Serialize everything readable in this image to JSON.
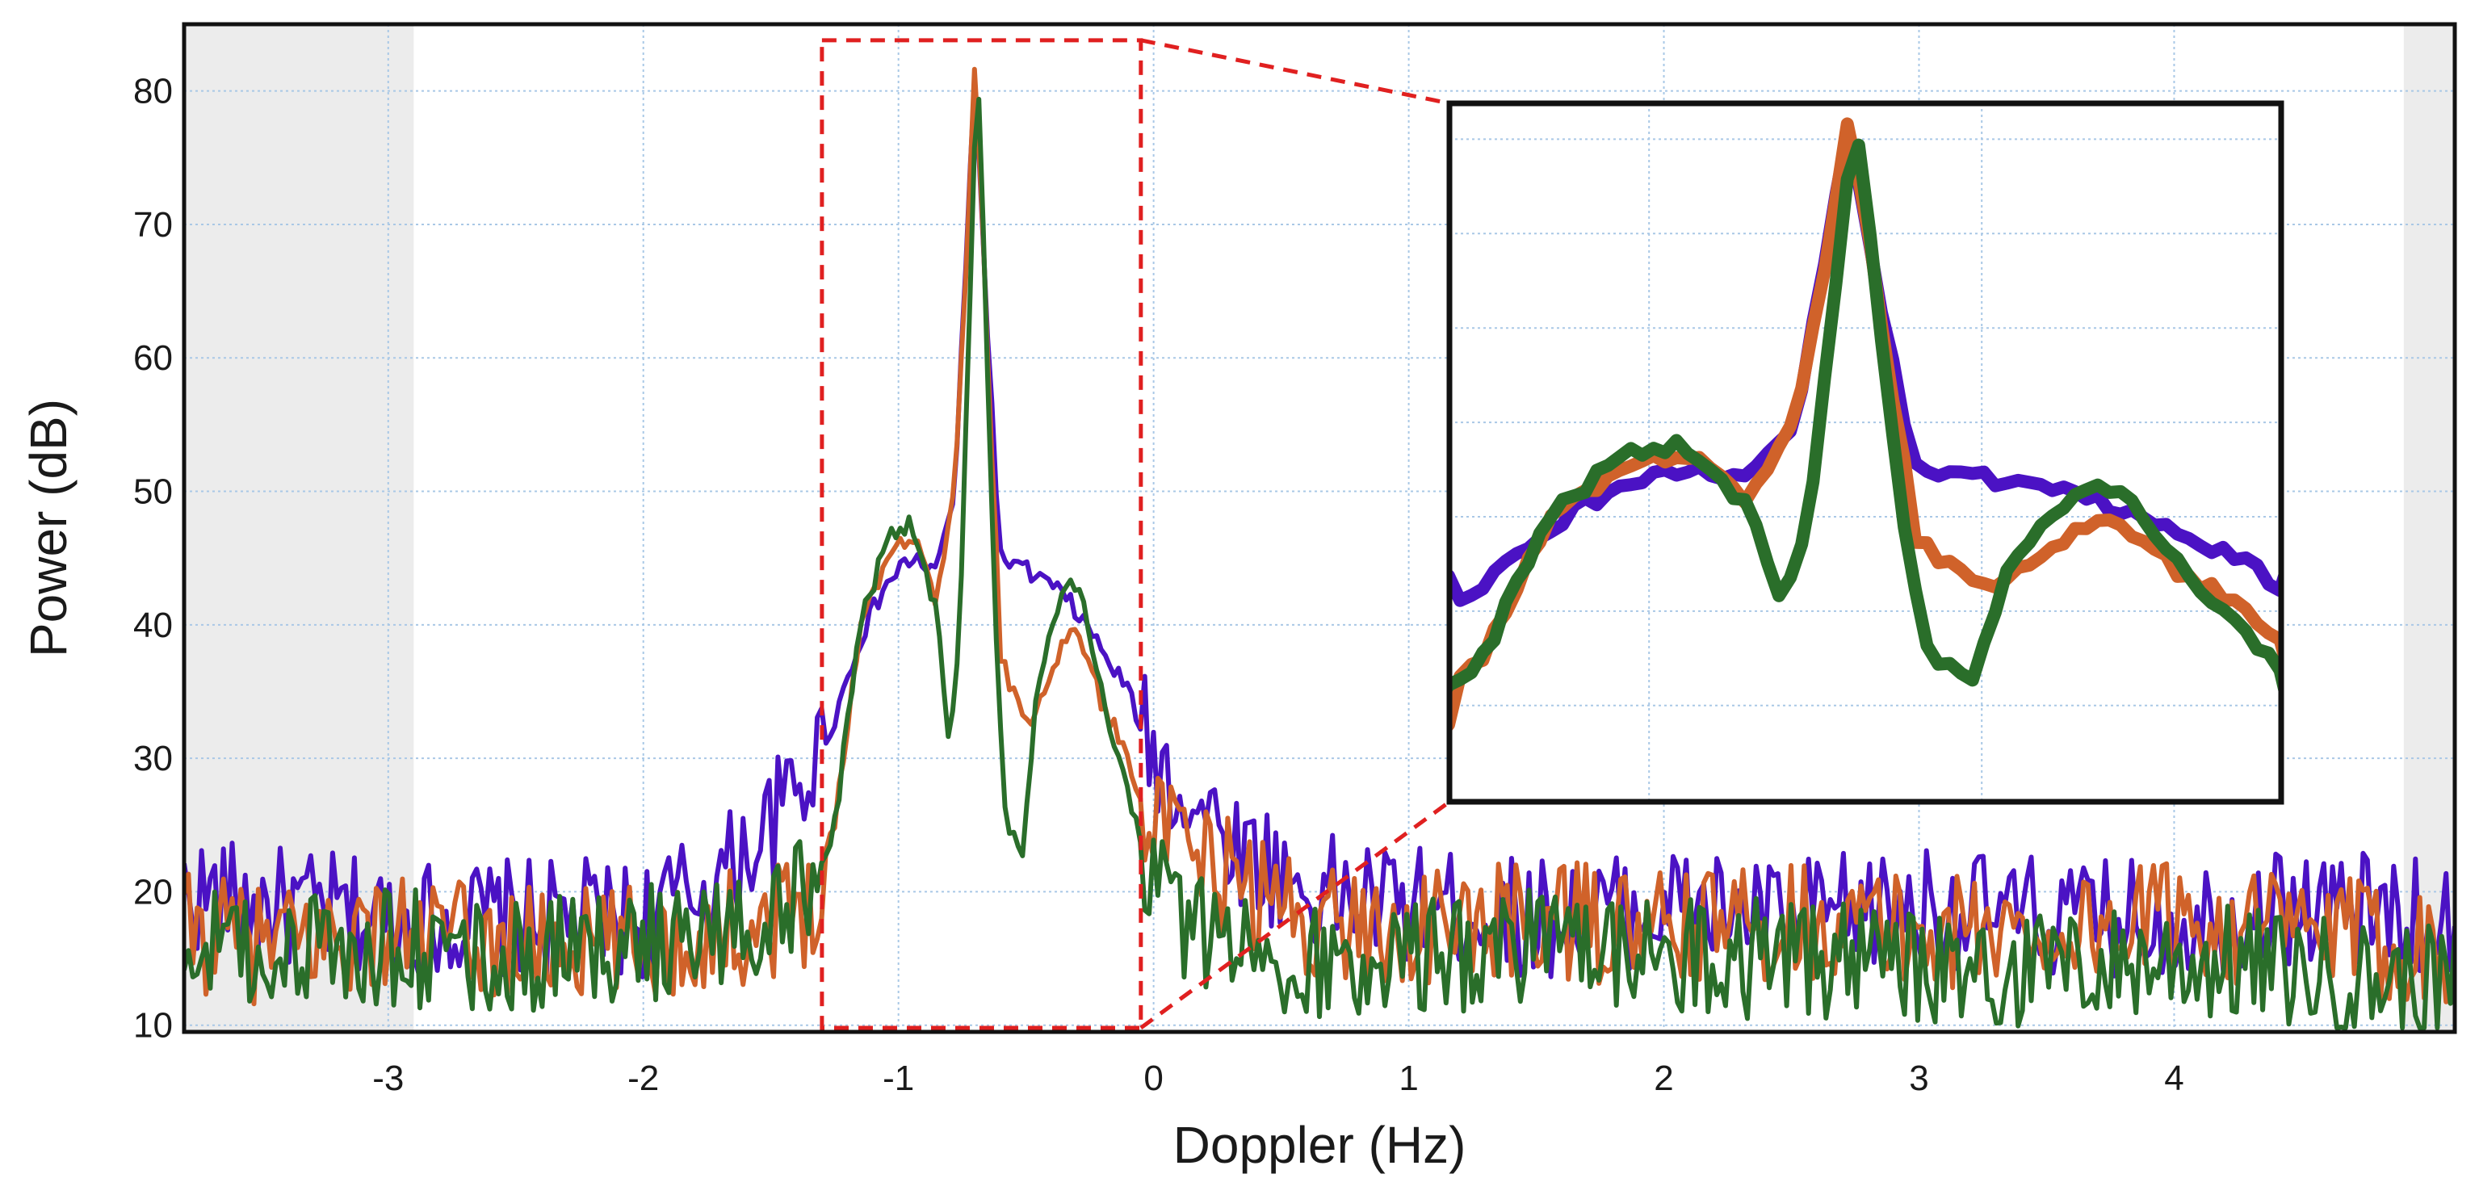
{
  "chart_data": {
    "type": "line",
    "title": "",
    "xlabel": "Doppler (Hz)",
    "ylabel": "Power (dB)",
    "xlim": [
      -3.8,
      5.1
    ],
    "ylim": [
      9.5,
      85
    ],
    "x_ticks": [
      -3,
      -2,
      -1,
      0,
      1,
      2,
      3,
      4
    ],
    "x_tick_labels": [
      "-3",
      "-2",
      "-1",
      "0",
      "1",
      "2",
      "3",
      "4"
    ],
    "y_ticks": [
      10,
      20,
      30,
      40,
      50,
      60,
      70,
      80
    ],
    "y_tick_labels": [
      "10",
      "20",
      "30",
      "40",
      "50",
      "60",
      "70",
      "80"
    ],
    "grid": true,
    "legend": "none",
    "shaded_regions": [
      [
        -3.8,
        -2.9
      ],
      [
        4.9,
        5.1
      ]
    ],
    "highlight_box": {
      "x": [
        -1.3,
        -0.05
      ],
      "y": [
        9.8,
        83.8
      ],
      "color": "#e02020",
      "style": "dashed"
    },
    "colors": {
      "purple": "#4b12c4",
      "orange": "#d0622a",
      "green": "#2a6e2a",
      "grid": "#a9c8e6",
      "shade": "#ececec"
    },
    "series": [
      {
        "color": "#4b12c4",
        "x": [
          -3.8,
          -3.5,
          -3.0,
          -2.5,
          -2.0,
          -1.7,
          -1.5,
          -1.35,
          -1.25,
          -1.15,
          -1.05,
          -0.95,
          -0.85,
          -0.78,
          -0.74,
          -0.7,
          -0.66,
          -0.6,
          -0.5,
          -0.4,
          -0.3,
          -0.2,
          -0.1,
          0.0,
          0.1,
          0.3,
          0.6,
          1.0,
          1.5,
          2.0,
          2.5,
          3.0,
          3.5,
          4.0,
          4.5,
          5.0
        ],
        "y": [
          20,
          19,
          18,
          18,
          18,
          21,
          25,
          29,
          33,
          39,
          43,
          45,
          44,
          50,
          65,
          82,
          65,
          45,
          44,
          43,
          41,
          38,
          35,
          30,
          28,
          24,
          20,
          19,
          18,
          19,
          18,
          19,
          18,
          18,
          19,
          18
        ]
      },
      {
        "color": "#d0622a",
        "x": [
          -3.8,
          -3.5,
          -3.0,
          -2.5,
          -2.0,
          -1.7,
          -1.5,
          -1.35,
          -1.25,
          -1.15,
          -1.05,
          -0.95,
          -0.85,
          -0.78,
          -0.74,
          -0.7,
          -0.66,
          -0.6,
          -0.5,
          -0.4,
          -0.3,
          -0.2,
          -0.1,
          0.0,
          0.1,
          0.3,
          0.6,
          1.0,
          1.5,
          2.0,
          2.5,
          3.0,
          3.5,
          4.0,
          4.5,
          5.0
        ],
        "y": [
          17,
          16,
          17,
          16,
          16,
          17,
          18,
          19,
          25,
          40,
          45,
          47,
          42,
          50,
          65,
          82,
          65,
          38,
          32,
          37,
          40,
          34,
          30,
          25,
          23,
          21,
          18,
          17,
          18,
          17,
          18,
          17,
          17,
          18,
          17,
          16
        ]
      },
      {
        "color": "#2a6e2a",
        "x": [
          -3.8,
          -3.5,
          -3.0,
          -2.5,
          -2.0,
          -1.7,
          -1.5,
          -1.35,
          -1.25,
          -1.15,
          -1.05,
          -0.95,
          -0.85,
          -0.8,
          -0.76,
          -0.72,
          -0.69,
          -0.66,
          -0.62,
          -0.58,
          -0.52,
          -0.45,
          -0.35,
          -0.28,
          -0.2,
          -0.1,
          0.0,
          0.1,
          0.3,
          0.6,
          1.0,
          1.5,
          2.0,
          2.5,
          3.0,
          3.5,
          4.0,
          4.5,
          5.0
        ],
        "y": [
          16,
          15,
          16,
          15,
          16,
          17,
          18,
          20,
          25,
          40,
          46,
          48,
          41,
          30,
          40,
          65,
          83,
          65,
          40,
          26,
          22,
          36,
          43,
          42,
          35,
          27,
          21,
          18,
          16,
          15,
          15,
          16,
          15,
          15,
          14,
          14,
          15,
          14,
          13
        ]
      }
    ],
    "inset": {
      "xlim": [
        -1.3,
        -0.05
      ],
      "ylim": [
        9.8,
        83.8
      ],
      "border_color": "#111111"
    }
  }
}
